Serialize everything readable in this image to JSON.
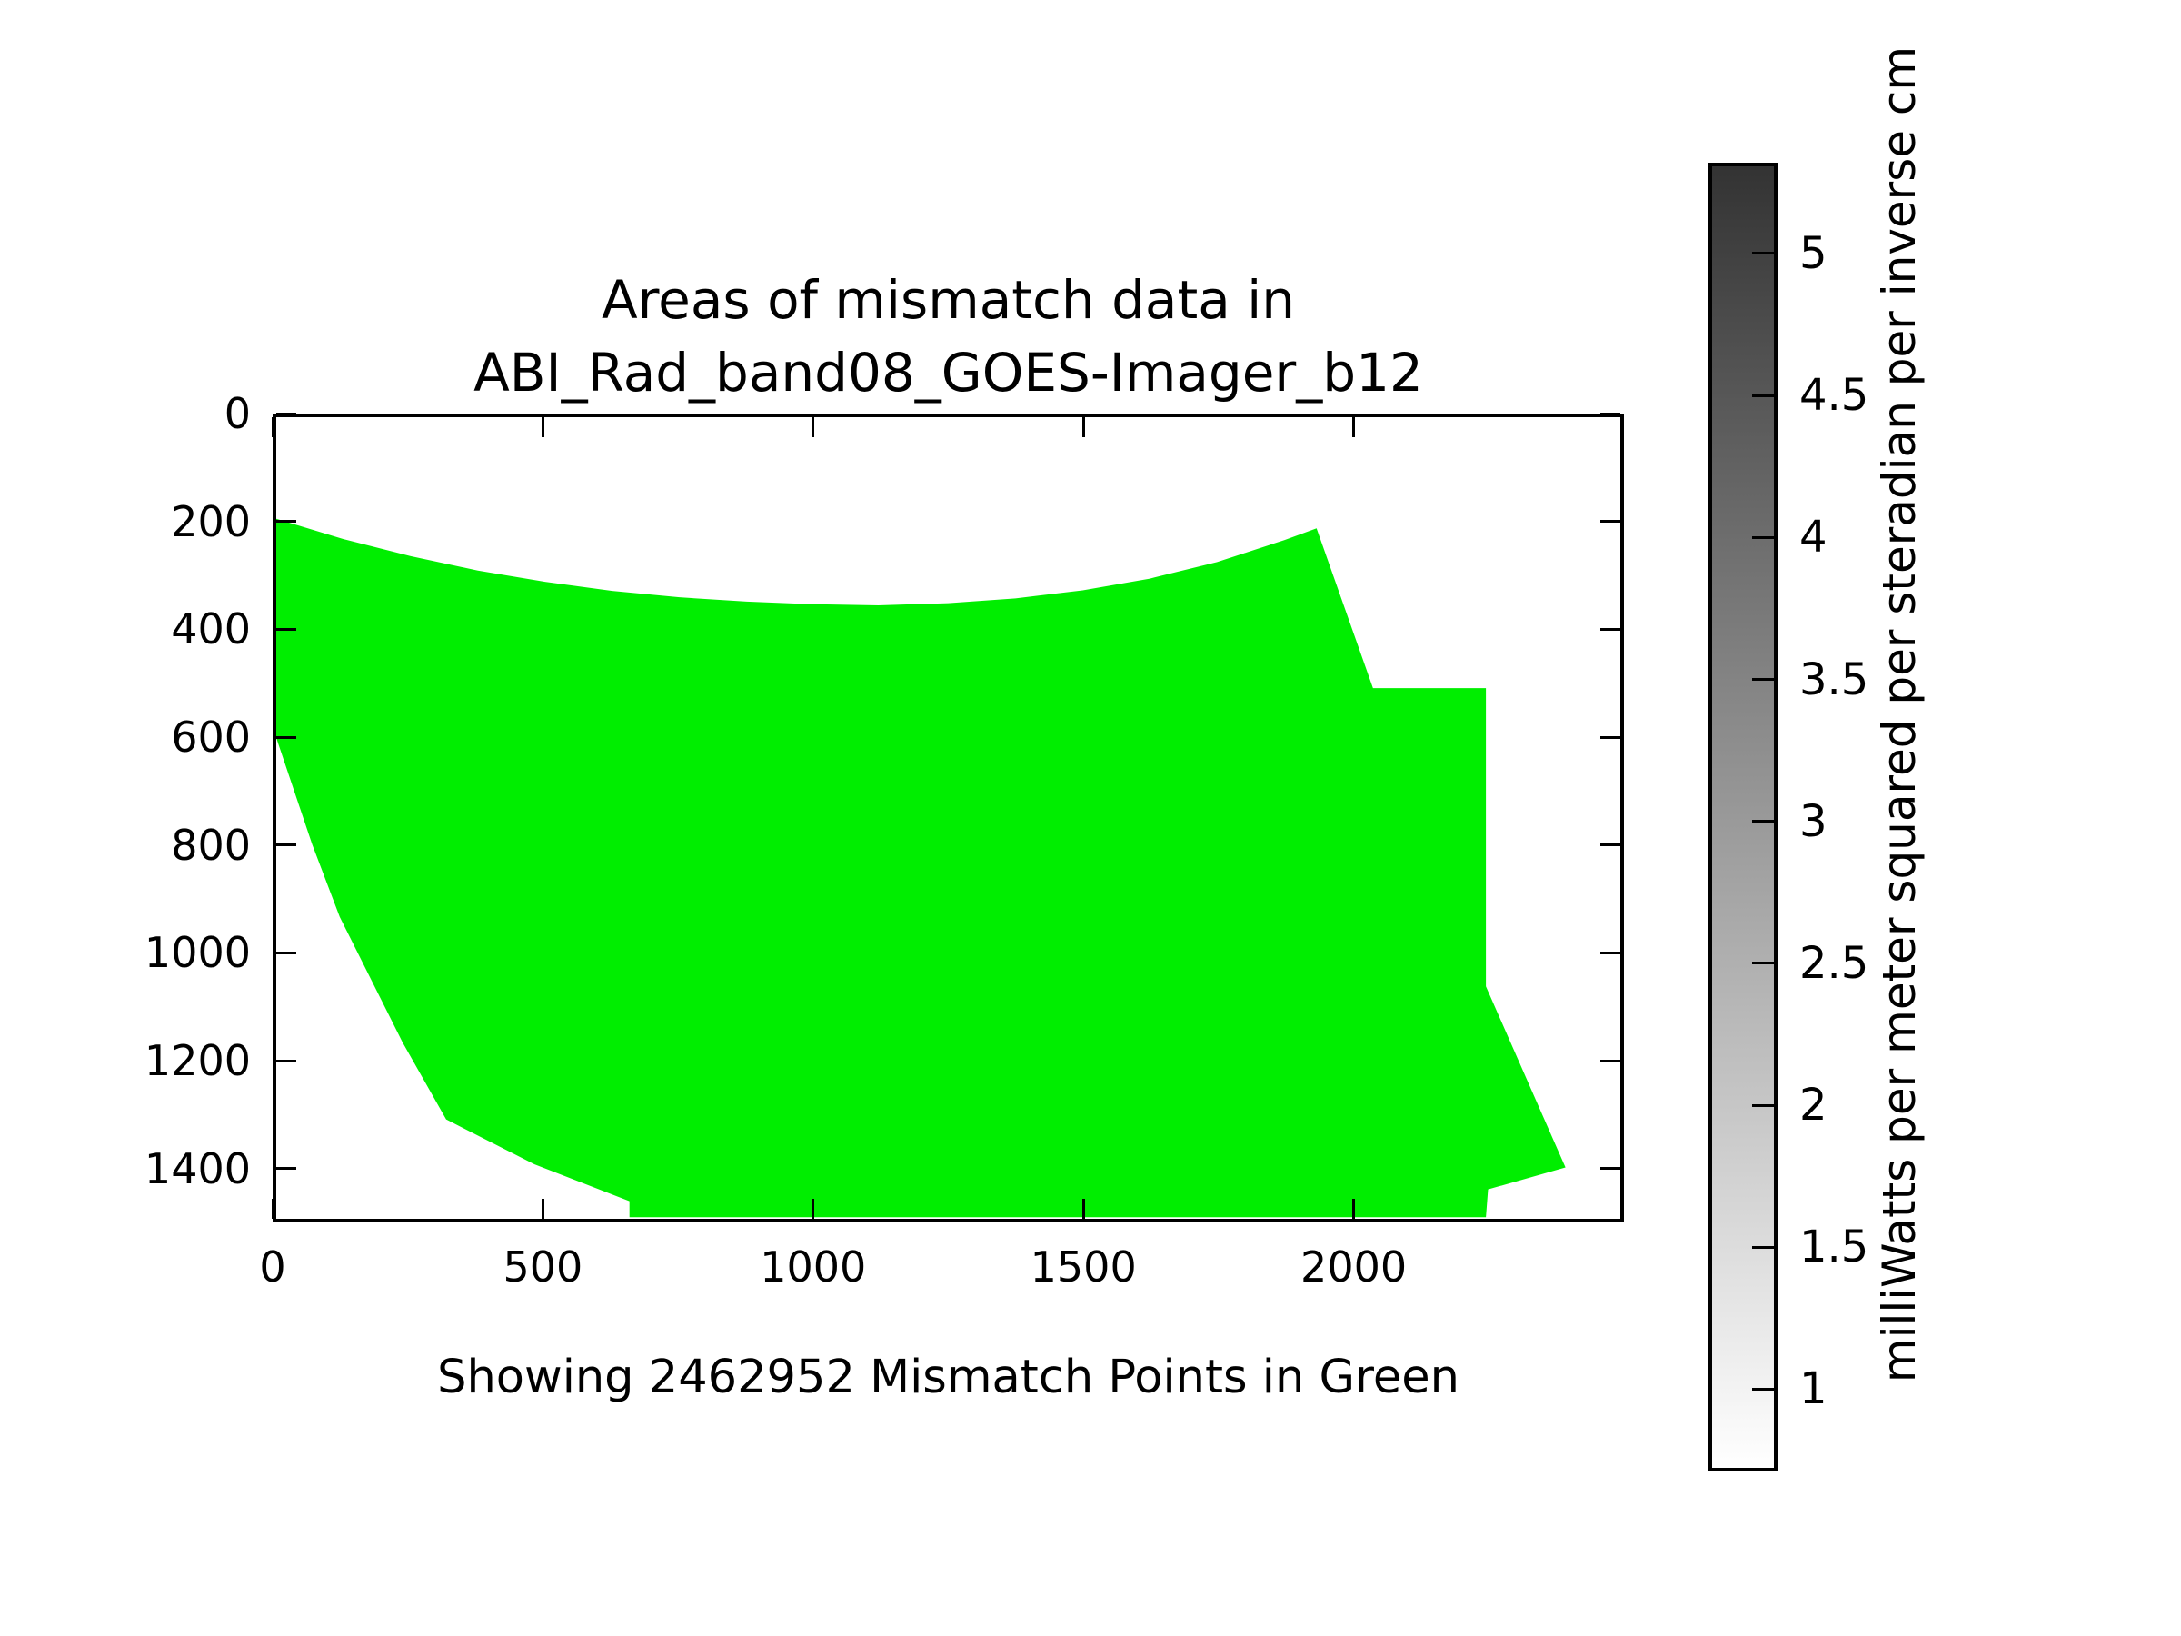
{
  "figure": {
    "background": "#ffffff",
    "title_line1": "Areas of mismatch data in",
    "title_line2": "ABI_Rad_band08_GOES-Imager_b12",
    "caption": "Showing 2462952 Mismatch Points in Green"
  },
  "chart_data": {
    "type": "area",
    "title": "Areas of mismatch data in ABI_Rad_band08_GOES-Imager_b12",
    "annotation": "Showing 2462952 Mismatch Points in Green",
    "mismatch_point_count": 2462952,
    "region_color": "#00ee00",
    "xlabel": "",
    "ylabel": "",
    "xlim": [
      0,
      2500
    ],
    "ylim_top_to_bottom": [
      0,
      1500
    ],
    "y_axis_inverted": true,
    "grid": false,
    "x_ticks": [
      0,
      500,
      1000,
      1500,
      2000
    ],
    "y_ticks": [
      0,
      200,
      400,
      600,
      800,
      1000,
      1200,
      1400
    ],
    "polygon_xy": [
      [
        0,
        190
      ],
      [
        125,
        228
      ],
      [
        250,
        260
      ],
      [
        375,
        287
      ],
      [
        500,
        308
      ],
      [
        625,
        325
      ],
      [
        750,
        337
      ],
      [
        875,
        345
      ],
      [
        1000,
        350
      ],
      [
        1120,
        352
      ],
      [
        1250,
        348
      ],
      [
        1375,
        339
      ],
      [
        1500,
        324
      ],
      [
        1625,
        302
      ],
      [
        1750,
        271
      ],
      [
        1875,
        230
      ],
      [
        1935,
        208
      ],
      [
        2040,
        507
      ],
      [
        2250,
        507
      ],
      [
        2250,
        1065
      ],
      [
        2398,
        1404
      ],
      [
        2254,
        1445
      ],
      [
        2250,
        1497
      ],
      [
        657,
        1497
      ],
      [
        657,
        1467
      ],
      [
        480,
        1398
      ],
      [
        316,
        1314
      ],
      [
        235,
        1170
      ],
      [
        118,
        935
      ],
      [
        67,
        800
      ],
      [
        0,
        600
      ]
    ],
    "colorbar": {
      "label": "milliWatts per meter squared per steradian per inverse cm",
      "ticks": [
        1,
        1.5,
        2,
        2.5,
        3,
        3.5,
        4,
        4.5,
        5
      ],
      "vmin": 0.71,
      "vmax": 5.32,
      "orientation": "vertical",
      "color_low": "#ffffff",
      "color_high": "#333333"
    }
  }
}
